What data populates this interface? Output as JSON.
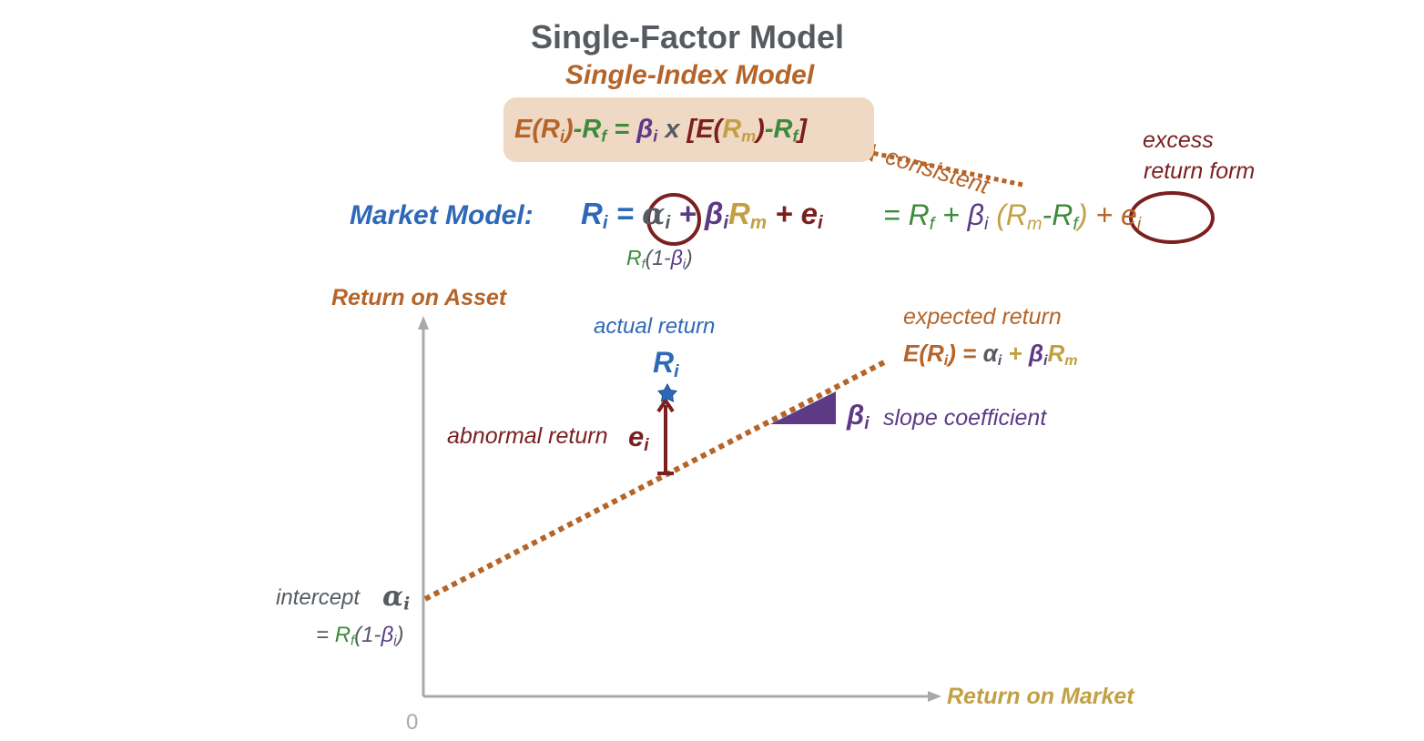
{
  "title": "Single-Factor Model",
  "subtitle": "Single-Index Model",
  "capm_equation": {
    "lhs_E": "E(R",
    "lhs_i": "i",
    "lhs_close": ")",
    "lhs_minus": "-R",
    "lhs_f": "f",
    "lhs_eq": " = ",
    "beta": "β",
    "beta_i": "i",
    "times": " x ",
    "bracket_open": "[E(",
    "rm": "R",
    "rm_m": "m",
    "paren_close": ")",
    "rf_minus": "-R",
    "rf_f": "f",
    "bracket_close": "]"
  },
  "market_model": {
    "label": "Market Model:",
    "ri": "R",
    "ri_sub": "i",
    "eq": " = ",
    "alpha": "α",
    "alpha_sub": "i",
    "plus1": " + ",
    "beta": "β",
    "beta_sub": "i",
    "rm": "R",
    "rm_sub": "m",
    "plus2": " + ",
    "e": "e",
    "e_sub": "i"
  },
  "excess_form": {
    "eq": "= R",
    "rf_sub": "f",
    "plus": " + ",
    "beta": "β",
    "beta_sub": "i",
    "open": " (R",
    "rm_sub": "m",
    "minus": "-R",
    "rf2_sub": "f",
    "close": ")",
    "plus2": " + e",
    "e_sub": "i"
  },
  "alpha_note": {
    "r": "R",
    "r_sub": "f",
    "open": "(1-",
    "beta": "β",
    "beta_sub": "i",
    "close": ")"
  },
  "arrow_label": "consistent",
  "excess_label_line1": "excess",
  "excess_label_line2": "return form",
  "axes": {
    "y_label": "Return on Asset",
    "x_label": "Return on Market",
    "origin": "0"
  },
  "actual_return": {
    "label": "actual return",
    "sym": "R",
    "sub": "i"
  },
  "expected_return": {
    "label": "expected return",
    "eq_E": "E(R",
    "eq_i": "i",
    "eq_close": ") = ",
    "alpha": "α",
    "alpha_sub": "i",
    "plus": " + ",
    "beta": "β",
    "beta_sub": "i",
    "rm": "R",
    "rm_sub": "m"
  },
  "abnormal_return": {
    "label": "abnormal return ",
    "sym": "e",
    "sub": "i"
  },
  "slope": {
    "sym": "β",
    "sub": "i",
    "label": "slope coefficient"
  },
  "intercept": {
    "label": "intercept",
    "sym": "α",
    "sub": "i",
    "eq_prefix": "= ",
    "r": "R",
    "r_sub": "f",
    "open": "(1-",
    "beta": "β",
    "beta_sub": "i",
    "close": ")"
  },
  "colors": {
    "orange": "#b5652a",
    "green": "#3d8a3d",
    "purple": "#5c3a86",
    "gold": "#c2a043",
    "maroon": "#7b1f1f",
    "blue": "#2e69b8",
    "gray": "#555b61",
    "box": "#f0d9c4"
  }
}
